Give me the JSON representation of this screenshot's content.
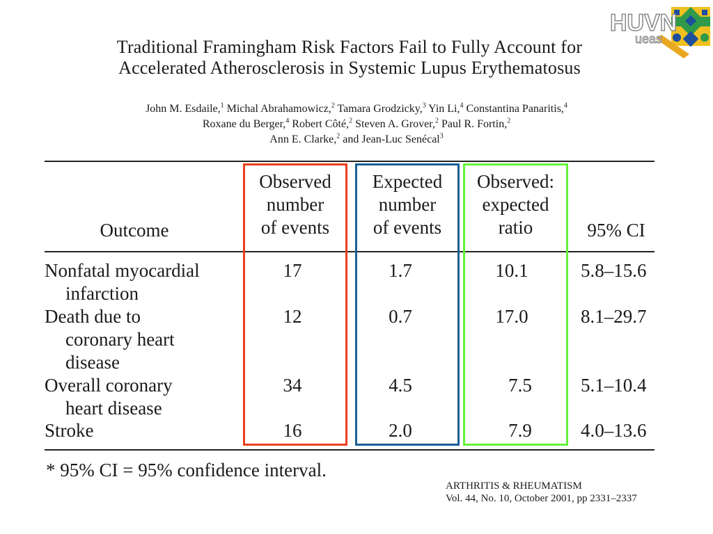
{
  "title": {
    "line1": "Traditional Framingham Risk Factors Fail to Fully Account for",
    "line2": "Accelerated Atherosclerosis in Systemic Lupus Erythematosus"
  },
  "authors": [
    [
      {
        "n": "John M. Esdaile,",
        "s": "1"
      },
      {
        "n": " Michal Abrahamowicz,",
        "s": "2"
      },
      {
        "n": " Tamara Grodzicky,",
        "s": "3"
      },
      {
        "n": " Yin Li,",
        "s": "4"
      },
      {
        "n": " Constantina Panaritis,",
        "s": "4"
      }
    ],
    [
      {
        "n": "Roxane du Berger,",
        "s": "4"
      },
      {
        "n": " Robert Côté,",
        "s": "2"
      },
      {
        "n": " Steven A. Grover,",
        "s": "2"
      },
      {
        "n": " Paul R. Fortin,",
        "s": "2"
      }
    ],
    [
      {
        "n": "Ann E. Clarke,",
        "s": "2"
      },
      {
        "n": " and Jean-Luc Senécal",
        "s": "3"
      }
    ]
  ],
  "logo": {
    "text": "HUVN",
    "subtext": "ueas"
  },
  "table": {
    "headers": {
      "outcome": [
        "Outcome"
      ],
      "observed": [
        "Observed",
        "number",
        "of events"
      ],
      "expected": [
        "Expected",
        "number",
        "of events"
      ],
      "ratio": [
        "Observed:",
        "expected",
        "ratio"
      ],
      "ci": [
        "95% CI"
      ]
    },
    "rows": [
      {
        "outcome": [
          "Nonfatal myocardial",
          "infarction"
        ],
        "observed": "17",
        "expected": "1.7",
        "ratio": "10.1",
        "ci": "5.8–15.6"
      },
      {
        "outcome": [
          "Death due to",
          "coronary heart",
          "disease"
        ],
        "observed": "12",
        "expected": "0.7",
        "ratio": "17.0",
        "ci": "8.1–29.7"
      },
      {
        "outcome": [
          "Overall coronary",
          "heart disease"
        ],
        "observed": "34",
        "expected": "4.5",
        "ratio": "7.5",
        "ci": "5.1–10.4"
      },
      {
        "outcome": [
          "Stroke"
        ],
        "observed": "16",
        "expected": "2.0",
        "ratio": "7.9",
        "ci": "4.0–13.6"
      }
    ],
    "footnote": "* 95% CI = 95% confidence interval."
  },
  "highlight_colors": {
    "observed": "#e8401c",
    "expected": "#1a5f96",
    "ratio": "#66f23a"
  },
  "journal": {
    "line1": "ARTHRITIS & RHEUMATISM",
    "line2": "Vol. 44, No. 10, October 2001, pp 2331–2337"
  }
}
